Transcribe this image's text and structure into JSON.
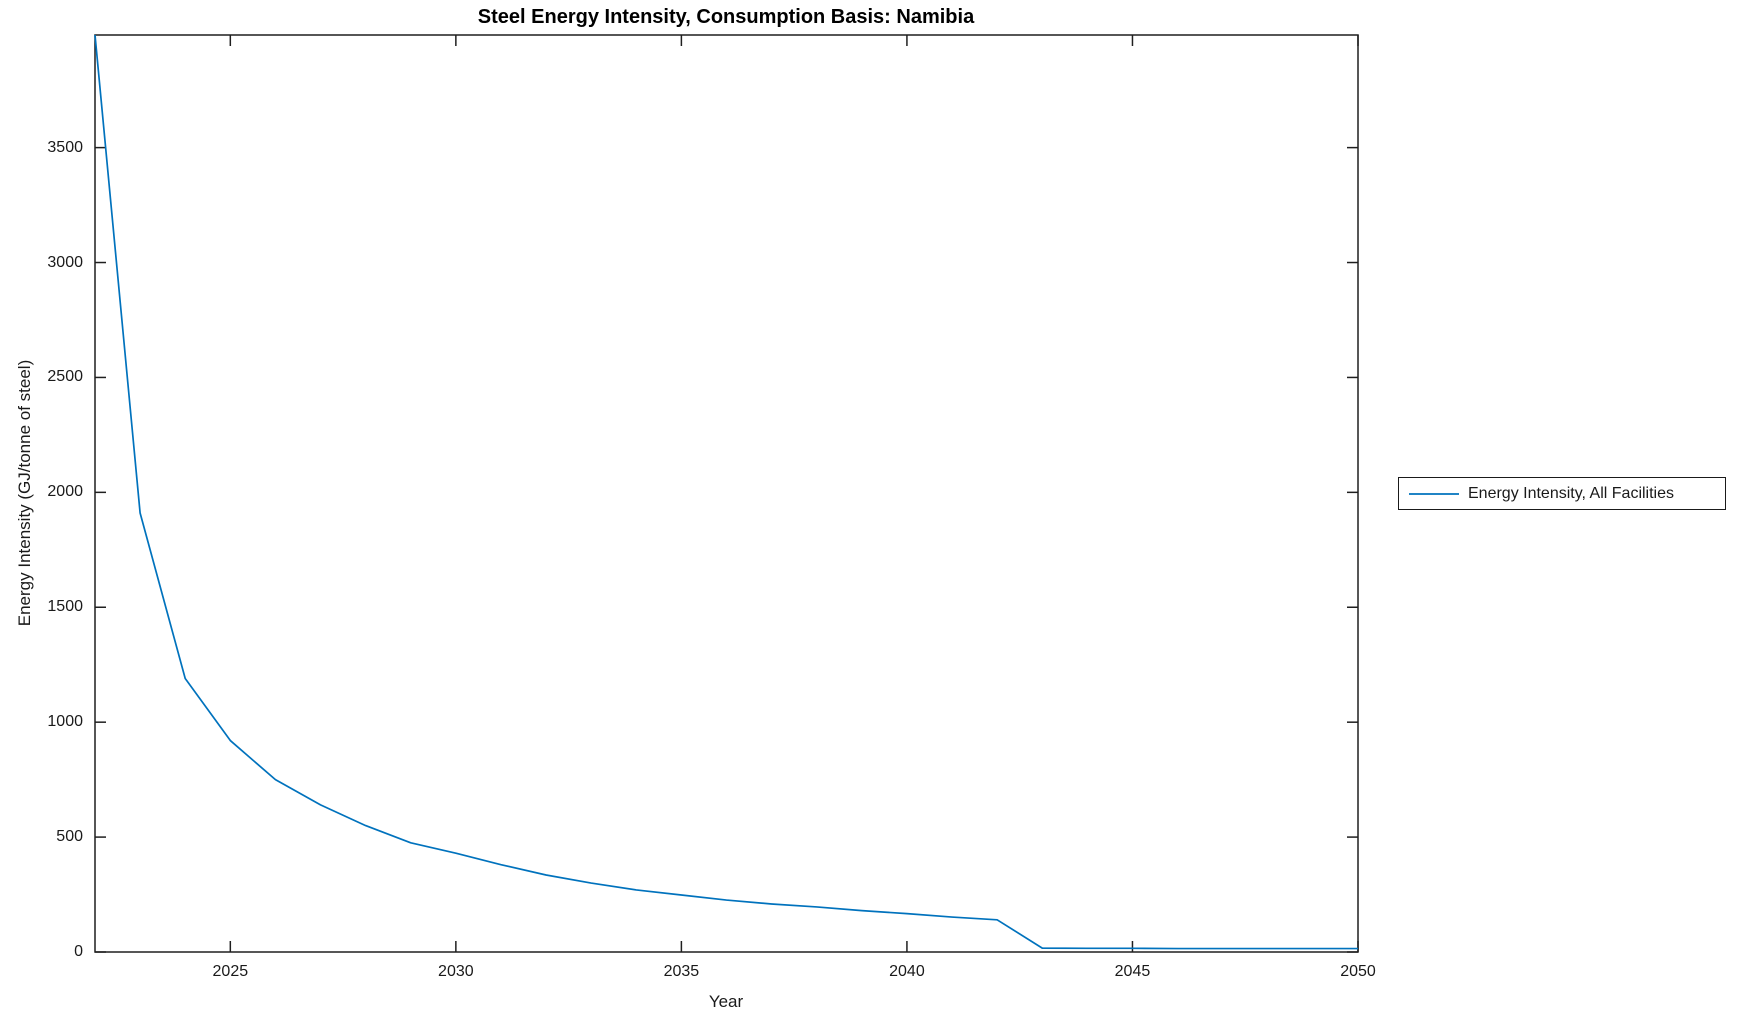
{
  "figure": {
    "background": "#ffffff"
  },
  "chart_data": {
    "type": "line",
    "title": "Steel Energy Intensity, Consumption Basis: Namibia",
    "xlabel": "Year",
    "ylabel": "Energy Intensity (GJ/tonne of steel)",
    "xlim": [
      2022,
      2050
    ],
    "ylim": [
      0,
      3990
    ],
    "xticks": [
      2025,
      2030,
      2035,
      2040,
      2045,
      2050
    ],
    "yticks": [
      0,
      500,
      1000,
      1500,
      2000,
      2500,
      3000,
      3500
    ],
    "grid": false,
    "box": true,
    "legend_position": "right-outside",
    "line_color": "#0072BD",
    "axis_color": "#1f1f1f",
    "series": [
      {
        "name": "Energy Intensity, All Facilities",
        "x": [
          2022,
          2023,
          2024,
          2025,
          2026,
          2027,
          2028,
          2029,
          2030,
          2031,
          2032,
          2033,
          2034,
          2035,
          2036,
          2037,
          2038,
          2039,
          2040,
          2041,
          2042,
          2043,
          2044,
          2045,
          2046,
          2047,
          2048,
          2049,
          2050
        ],
        "y": [
          3990,
          1910,
          1190,
          920,
          750,
          640,
          550,
          475,
          430,
          380,
          335,
          300,
          270,
          248,
          226,
          209,
          196,
          180,
          167,
          152,
          140,
          17,
          16,
          16,
          15,
          15,
          15,
          15,
          15
        ]
      }
    ]
  }
}
